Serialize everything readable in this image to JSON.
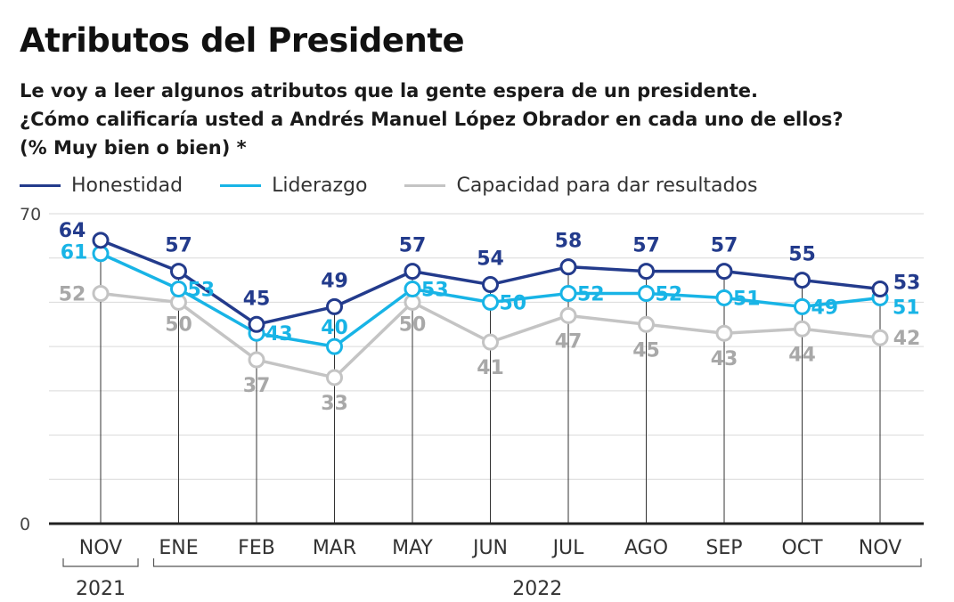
{
  "header": {
    "title": "Atributos del Presidente",
    "subtitle_lines": [
      "Le voy a leer algunos atributos que la gente espera de un presidente.",
      "¿Cómo calificaría usted a Andrés Manuel López Obrador en cada uno de ellos?",
      "(% Muy bien o bien) *"
    ]
  },
  "colors": {
    "honestidad": "#233b8c",
    "liderazgo": "#18b4e6",
    "capacidad": "#c4c4c4",
    "grid": "#d9d9d9",
    "axis": "#222222"
  },
  "chart_data": {
    "type": "line",
    "title": "Atributos del Presidente",
    "categories": [
      "NOV",
      "ENE",
      "FEB",
      "MAR",
      "MAY",
      "JUN",
      "JUL",
      "AGO",
      "SEP",
      "OCT",
      "NOV"
    ],
    "year_groups": [
      {
        "label": "2021",
        "from": 0,
        "to": 0
      },
      {
        "label": "2022",
        "from": 1,
        "to": 10
      }
    ],
    "series": [
      {
        "name": "Honestidad",
        "key": "honestidad",
        "values": [
          64,
          57,
          45,
          49,
          57,
          54,
          58,
          57,
          57,
          55,
          53
        ]
      },
      {
        "name": "Liderazgo",
        "key": "liderazgo",
        "values": [
          61,
          53,
          43,
          40,
          53,
          50,
          52,
          52,
          51,
          49,
          51
        ]
      },
      {
        "name": "Capacidad para dar resultados",
        "key": "capacidad",
        "values": [
          52,
          50,
          37,
          33,
          50,
          41,
          47,
          45,
          43,
          44,
          42
        ]
      }
    ],
    "yticks": [
      0,
      70
    ],
    "ylim": [
      0,
      70
    ],
    "grid": true,
    "legend_position": "top-left",
    "xlabel": "",
    "ylabel": ""
  }
}
